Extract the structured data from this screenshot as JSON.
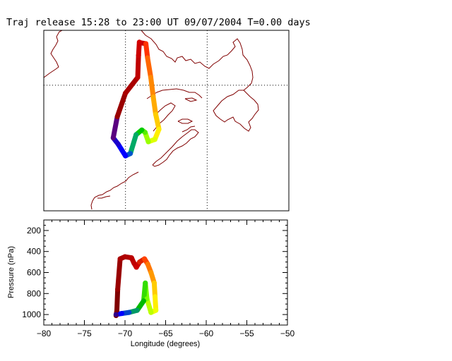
{
  "chart_data": {
    "title": "Traj release 15:28 to 23:00 UT 09/07/2004    T=0.00 days",
    "map": {
      "type": "trajectory-map",
      "lon_range": [
        -80,
        -50
      ],
      "lat_range": [
        34,
        57
      ],
      "grid_lons": [
        -70,
        -60
      ],
      "grid_lats": [
        50
      ],
      "coast_color": "#800000",
      "trajectory": [
        {
          "lon": -68.1,
          "lat": 55.4,
          "color": "#cc0000"
        },
        {
          "lon": -67.5,
          "lat": 55.3,
          "color": "#ff3300"
        },
        {
          "lon": -67.3,
          "lat": 53.5,
          "color": "#ff6600"
        },
        {
          "lon": -66.9,
          "lat": 51.0,
          "color": "#ff8800"
        },
        {
          "lon": -66.6,
          "lat": 48.5,
          "color": "#ffaa00"
        },
        {
          "lon": -66.3,
          "lat": 46.3,
          "color": "#ffcc00"
        },
        {
          "lon": -65.9,
          "lat": 44.4,
          "color": "#ffee00"
        },
        {
          "lon": -66.4,
          "lat": 43.1,
          "color": "#ddff00"
        },
        {
          "lon": -67.2,
          "lat": 42.8,
          "color": "#99ff00"
        },
        {
          "lon": -67.6,
          "lat": 44.0,
          "color": "#55ee00"
        },
        {
          "lon": -68.0,
          "lat": 44.3,
          "color": "#00cc00"
        },
        {
          "lon": -68.7,
          "lat": 43.7,
          "color": "#00aa66"
        },
        {
          "lon": -69.4,
          "lat": 41.3,
          "color": "#0055cc"
        },
        {
          "lon": -70.0,
          "lat": 41.0,
          "color": "#0000ff"
        },
        {
          "lon": -70.9,
          "lat": 42.5,
          "color": "#1a00cc"
        },
        {
          "lon": -71.5,
          "lat": 43.3,
          "color": "#5a0080"
        },
        {
          "lon": -71.0,
          "lat": 46.0,
          "color": "#990000"
        },
        {
          "lon": -70.0,
          "lat": 49.0,
          "color": "#aa0000"
        },
        {
          "lon": -68.5,
          "lat": 51.0,
          "color": "#c00000"
        },
        {
          "lon": -68.4,
          "lat": 53.8,
          "color": "#cc0000"
        },
        {
          "lon": -68.3,
          "lat": 55.5,
          "color": "#d40000"
        }
      ]
    },
    "profile": {
      "type": "line",
      "xlabel": "Longitude  (degrees)",
      "ylabel": "Pressure  (nPa)",
      "xlim": [
        -80,
        -50
      ],
      "ylim": [
        1100,
        100
      ],
      "xticks": [
        -80,
        -75,
        -70,
        -65,
        -60,
        -55,
        -50
      ],
      "yticks": [
        200,
        400,
        600,
        800,
        1000
      ],
      "points": [
        {
          "lon": -71.1,
          "p": 1010,
          "color": "#800000"
        },
        {
          "lon": -71.0,
          "p": 960,
          "color": "#800000"
        },
        {
          "lon": -70.9,
          "p": 760,
          "color": "#990000"
        },
        {
          "lon": -70.6,
          "p": 470,
          "color": "#aa0000"
        },
        {
          "lon": -70.0,
          "p": 450,
          "color": "#b00000"
        },
        {
          "lon": -69.2,
          "p": 460,
          "color": "#bb0000"
        },
        {
          "lon": -68.9,
          "p": 510,
          "color": "#c00000"
        },
        {
          "lon": -68.6,
          "p": 550,
          "color": "#cc0000"
        },
        {
          "lon": -68.2,
          "p": 500,
          "color": "#dd2200"
        },
        {
          "lon": -67.6,
          "p": 470,
          "color": "#ff4400"
        },
        {
          "lon": -67.2,
          "p": 520,
          "color": "#ff7700"
        },
        {
          "lon": -66.8,
          "p": 600,
          "color": "#ff9900"
        },
        {
          "lon": -66.4,
          "p": 700,
          "color": "#ffcc00"
        },
        {
          "lon": -66.3,
          "p": 830,
          "color": "#ffee00"
        },
        {
          "lon": -66.2,
          "p": 960,
          "color": "#eeff00"
        },
        {
          "lon": -66.8,
          "p": 980,
          "color": "#bbff00"
        },
        {
          "lon": -67.3,
          "p": 850,
          "color": "#77ff00"
        },
        {
          "lon": -67.5,
          "p": 700,
          "color": "#33dd00"
        },
        {
          "lon": -67.7,
          "p": 870,
          "color": "#00bb00"
        },
        {
          "lon": -68.5,
          "p": 960,
          "color": "#009966"
        },
        {
          "lon": -69.5,
          "p": 980,
          "color": "#0044cc"
        },
        {
          "lon": -70.4,
          "p": 990,
          "color": "#0000ff"
        },
        {
          "lon": -71.1,
          "p": 1000,
          "color": "#330088"
        }
      ]
    }
  }
}
